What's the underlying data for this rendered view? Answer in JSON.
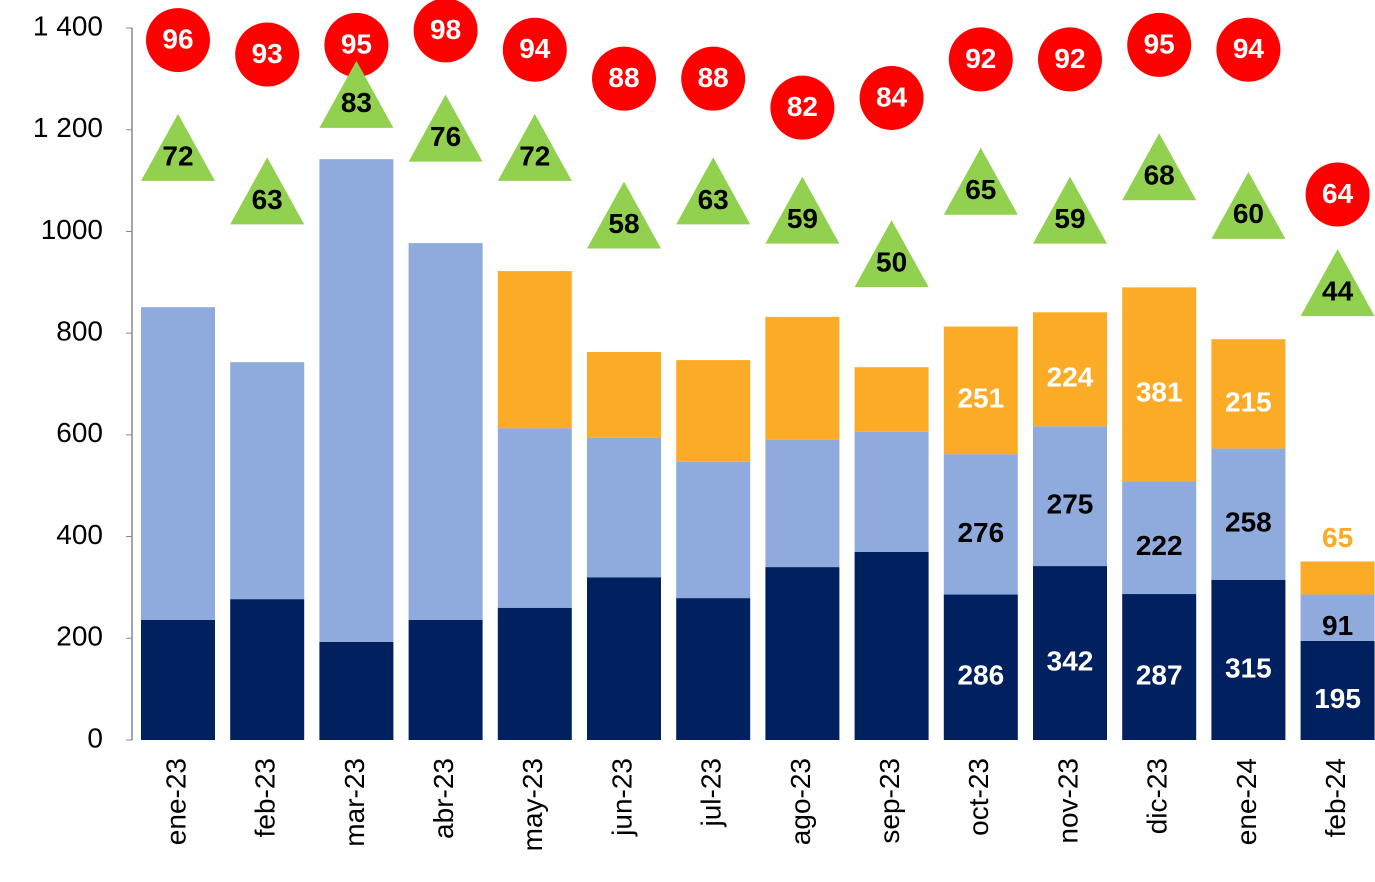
{
  "chart_data": {
    "type": "bar",
    "stacked": true,
    "categories": [
      "ene-23",
      "feb-23",
      "mar-23",
      "abr-23",
      "may-23",
      "jun-23",
      "jul-23",
      "ago-23",
      "sep-23",
      "oct-23",
      "nov-23",
      "dic-23",
      "ene-24",
      "feb-24"
    ],
    "ylim": [
      0,
      1400
    ],
    "yticks": [
      0,
      200,
      400,
      600,
      800,
      1000,
      {
        "value": 1200,
        "label": "1 200"
      },
      {
        "value": 1400,
        "label": "1 400"
      }
    ],
    "y2lim": [
      -49,
      98.5
    ],
    "grid": false,
    "series": [
      {
        "color": "#002060",
        "values": [
          236,
          277,
          193,
          236,
          260,
          320,
          279,
          340,
          370,
          286,
          342,
          287,
          315,
          195
        ],
        "value_labels": [
          null,
          null,
          null,
          null,
          null,
          null,
          null,
          null,
          null,
          "286",
          "342",
          "287",
          "315",
          "195"
        ],
        "label_color": "#ffffff"
      },
      {
        "color": "#8faadc",
        "values": [
          615,
          466,
          949,
          741,
          353,
          274,
          268,
          250,
          236,
          276,
          275,
          222,
          258,
          91
        ],
        "value_labels": [
          null,
          null,
          null,
          null,
          null,
          null,
          null,
          null,
          null,
          "276",
          "275",
          "222",
          "258",
          "91"
        ],
        "label_color": "#000000"
      },
      {
        "color": "#fbab25",
        "values": [
          0,
          0,
          0,
          0,
          309,
          169,
          200,
          242,
          127,
          251,
          224,
          381,
          215,
          65
        ],
        "value_labels": [
          null,
          null,
          null,
          null,
          null,
          null,
          null,
          null,
          null,
          "251",
          "224",
          "381",
          "215",
          "65"
        ],
        "label_color": "#ffffff"
      },
      {
        "type": "circle",
        "axis": "y2",
        "color": "#ff0000",
        "values": [
          96,
          93,
          95,
          98,
          94,
          88,
          88,
          82,
          84,
          92,
          92,
          95,
          94,
          64
        ]
      },
      {
        "type": "triangle",
        "axis": "y2",
        "color": "#92d050",
        "values": [
          72,
          63,
          83,
          76,
          72,
          58,
          63,
          59,
          50,
          65,
          59,
          68,
          60,
          44
        ]
      }
    ]
  }
}
